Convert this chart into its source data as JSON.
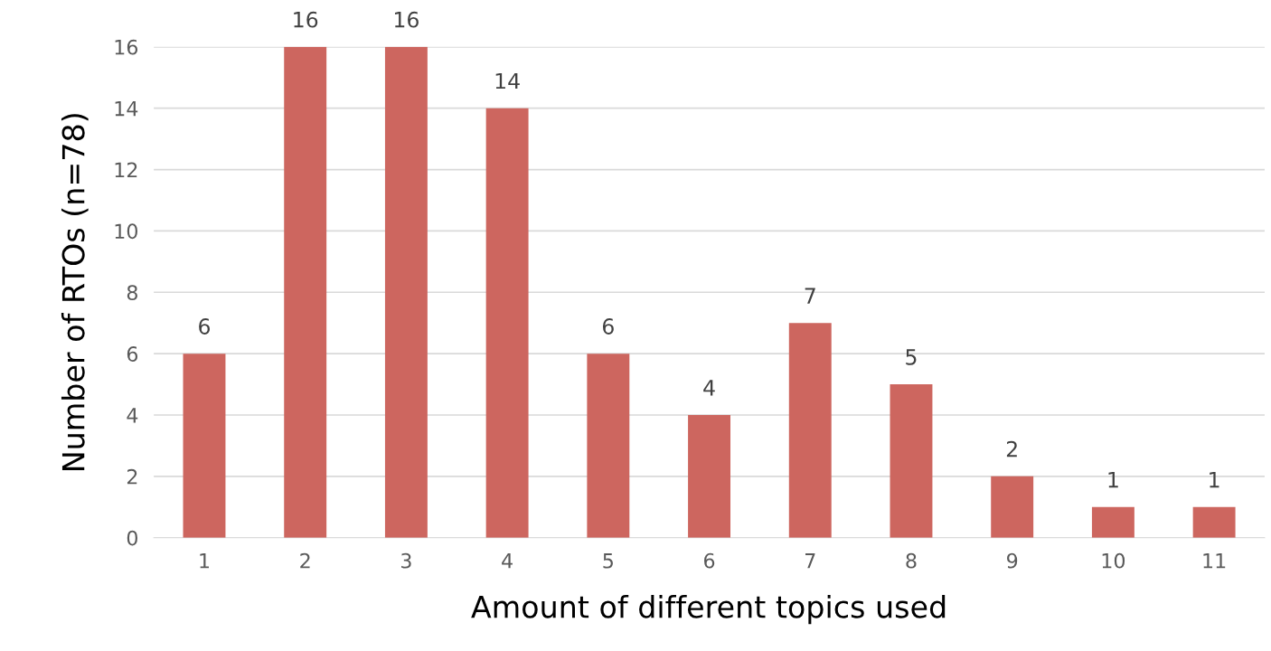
{
  "chart_data": {
    "type": "bar",
    "xlabel": "Amount of different topics used",
    "ylabel": "Number of RTOs (n=78)",
    "categories": [
      "1",
      "2",
      "3",
      "4",
      "5",
      "6",
      "7",
      "8",
      "9",
      "10",
      "11"
    ],
    "values": [
      6,
      16,
      16,
      14,
      6,
      4,
      7,
      5,
      2,
      1,
      1
    ],
    "color": "#cd665f",
    "ylim": [
      0,
      16
    ],
    "yticks": [
      0,
      2,
      4,
      6,
      8,
      10,
      12,
      14,
      16
    ],
    "grid": "y",
    "data_labels": true,
    "legend": false
  }
}
